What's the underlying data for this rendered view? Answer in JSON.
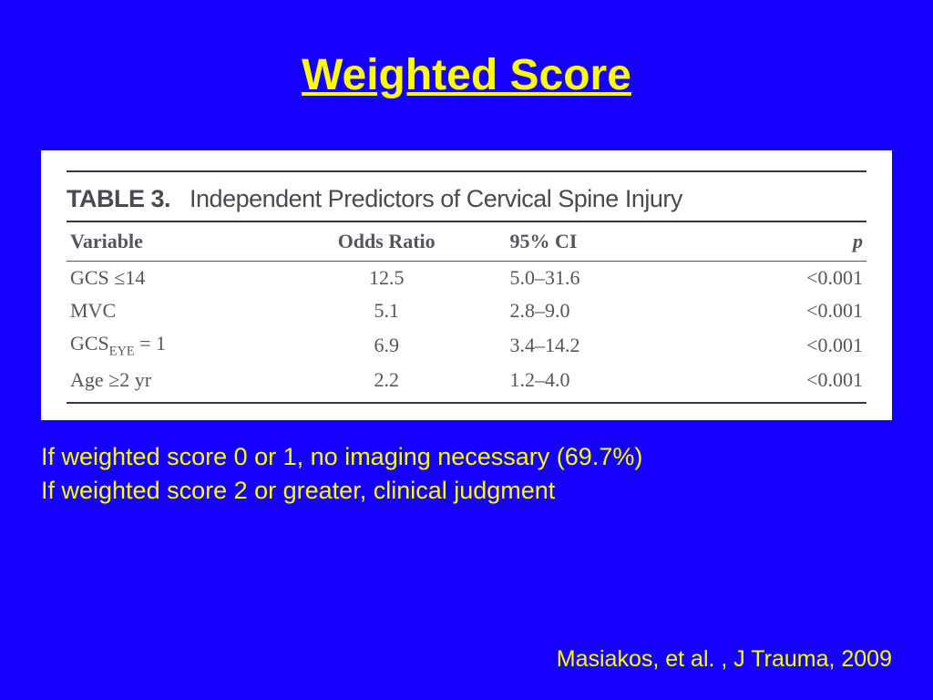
{
  "colors": {
    "background": "#1500ff",
    "title": "#ffff00",
    "panel_bg": "#ffffff",
    "table_text": "#555560",
    "rule": "#3a3a3a",
    "notes": "#ffff00"
  },
  "typography": {
    "title_fontsize": 48,
    "table_caption_fontsize": 27,
    "table_header_fontsize": 22,
    "table_cell_fontsize": 22,
    "notes_fontsize": 27,
    "citation_fontsize": 25
  },
  "title": "Weighted Score",
  "table": {
    "type": "table",
    "caption_label": "TABLE 3.",
    "caption_text": "Independent Predictors of Cervical Spine Injury",
    "columns": [
      "Variable",
      "Odds Ratio",
      "95% CI",
      "p"
    ],
    "rows": [
      {
        "variable": "GCS ≤14",
        "odds_ratio": "12.5",
        "ci": "5.0–31.6",
        "p": "<0.001"
      },
      {
        "variable": "MVC",
        "odds_ratio": "5.1",
        "ci": "2.8–9.0",
        "p": "<0.001"
      },
      {
        "variable": "GCSEYE = 1",
        "odds_ratio": "6.9",
        "ci": "3.4–14.2",
        "p": "<0.001"
      },
      {
        "variable": "Age ≥2 yr",
        "odds_ratio": "2.2",
        "ci": "1.2–4.0",
        "p": "<0.001"
      }
    ]
  },
  "notes": {
    "line1": "If weighted score 0 or 1, no imaging necessary (69.7%)",
    "line2": "If weighted score 2 or greater, clinical judgment"
  },
  "citation": "Masiakos, et al. , J Trauma, 2009"
}
